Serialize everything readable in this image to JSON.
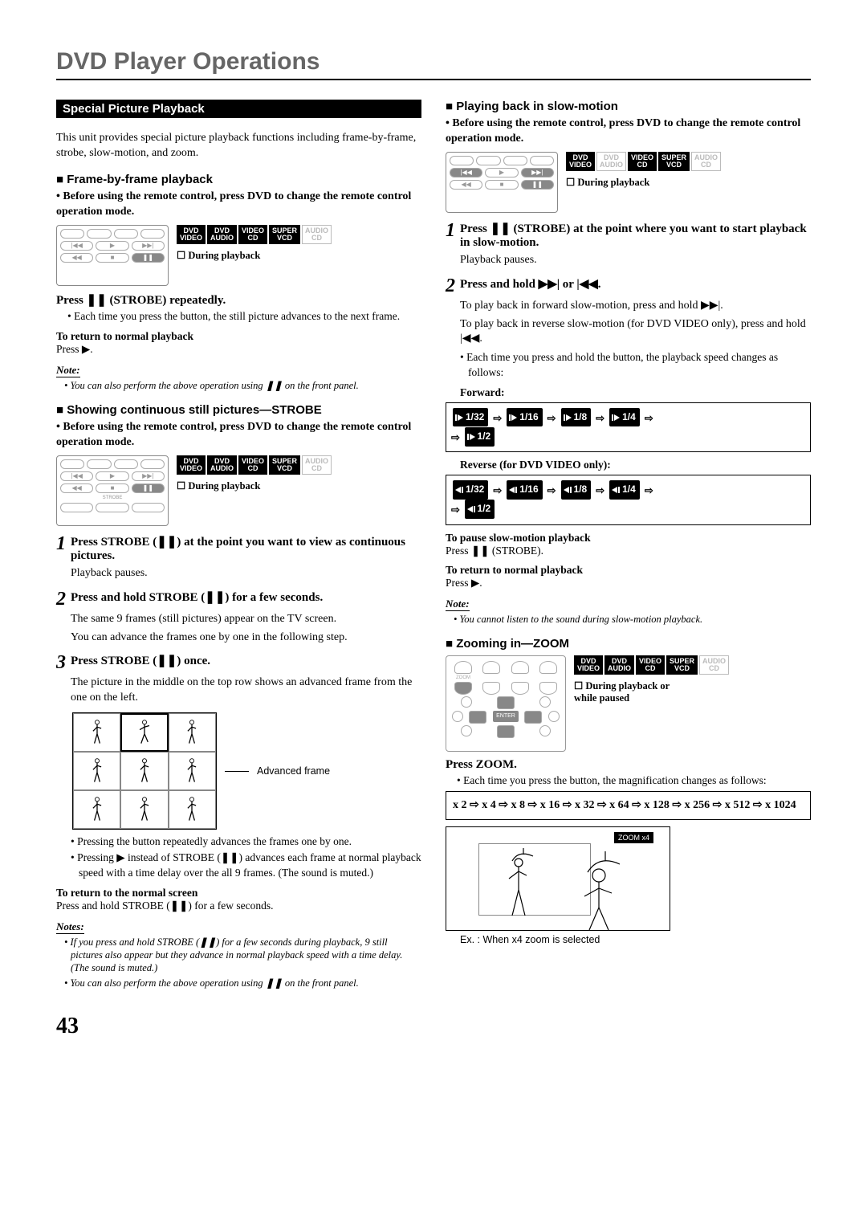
{
  "page_title": "DVD Player Operations",
  "page_number": "43",
  "section_bar": "Special Picture Playback",
  "intro": "This unit provides special picture playback functions including frame-by-frame, strobe, slow-motion, and zoom.",
  "badges": {
    "dvd_video": "DVD\nVIDEO",
    "dvd_audio": "DVD\nAUDIO",
    "video_cd": "VIDEO\nCD",
    "super_vcd": "SUPER\nVCD",
    "audio_cd": "AUDIO\nCD"
  },
  "during_playback": "☐ During playback",
  "during_playback_paused": "☐ During playback or while paused",
  "frame": {
    "head": "Frame-by-frame playback",
    "pre": "• Before using the remote control, press DVD to change the remote control operation mode.",
    "press": "Press ❚❚ (STROBE) repeatedly.",
    "bullet": "• Each time you press the button, the still picture advances to the next frame.",
    "return_head": "To return to normal playback",
    "return_body": "Press ▶.",
    "note": "• You can also perform the above operation using ❚❚ on the front panel."
  },
  "strobe": {
    "head": "Showing continuous still pictures—STROBE",
    "pre": "• Before using the remote control, press DVD to change the remote control operation mode.",
    "step1": "Press STROBE (❚❚) at the point you want to view as continuous pictures.",
    "step1_body": "Playback pauses.",
    "step2": "Press and hold STROBE (❚❚) for a few seconds.",
    "step2_body1": "The same 9 frames (still pictures) appear on the TV screen.",
    "step2_body2": "You can advance the frames one by one in the following step.",
    "step3": "Press STROBE (❚❚) once.",
    "step3_body": "The picture in the middle on the top row shows an advanced frame from the one on the left.",
    "fig_caption": "Advanced frame",
    "b1": "• Pressing the button repeatedly advances the frames one by one.",
    "b2": "• Pressing ▶ instead of STROBE (❚❚) advances each frame at normal playback speed with a time delay over the all 9 frames. (The sound is muted.)",
    "return_head": "To return to the normal screen",
    "return_body": "Press and hold STROBE (❚❚) for a few seconds.",
    "notes_label": "Notes:",
    "note1": "• If you press and hold STROBE (❚❚) for a few seconds during playback, 9 still pictures also appear but they advance in normal playback speed with a time delay. (The sound is muted.)",
    "note2": "• You can also perform the above operation using ❚❚ on the front panel."
  },
  "slow": {
    "head": "Playing back in slow-motion",
    "pre": "• Before using the remote control, press DVD to change the remote control operation mode.",
    "step1": "Press ❚❚ (STROBE) at the point where you want to start playback in slow-motion.",
    "step1_body": "Playback pauses.",
    "step2": "Press and hold ▶▶| or |◀◀.",
    "step2_a": "To play back in forward slow-motion, press and hold ▶▶|.",
    "step2_b": "To play back in reverse slow-motion (for DVD VIDEO only), press and hold |◀◀.",
    "step2_c": "• Each time you press and hold the button, the playback speed changes as follows:",
    "forward_label": "Forward:",
    "reverse_label": "Reverse (for DVD VIDEO only):",
    "speeds": [
      "1/32",
      "1/16",
      "1/8",
      "1/4",
      "1/2"
    ],
    "pause_head": "To pause slow-motion playback",
    "pause_body": "Press ❚❚ (STROBE).",
    "return_head": "To return to normal playback",
    "return_body": "Press ▶.",
    "note": "• You cannot listen to the sound during slow-motion playback."
  },
  "zoom": {
    "head": "Zooming in—ZOOM",
    "press": "Press ZOOM.",
    "body": "• Each time you press the button, the magnification changes as follows:",
    "mags": [
      "x 2",
      "x 4",
      "x 8",
      "x 16",
      "x 32",
      "x 64",
      "x 128",
      "x 256",
      "x 512",
      "x 1024"
    ],
    "osd": "ZOOM x4",
    "caption": "Ex. : When x4 zoom is selected"
  },
  "note_label": "Note:"
}
